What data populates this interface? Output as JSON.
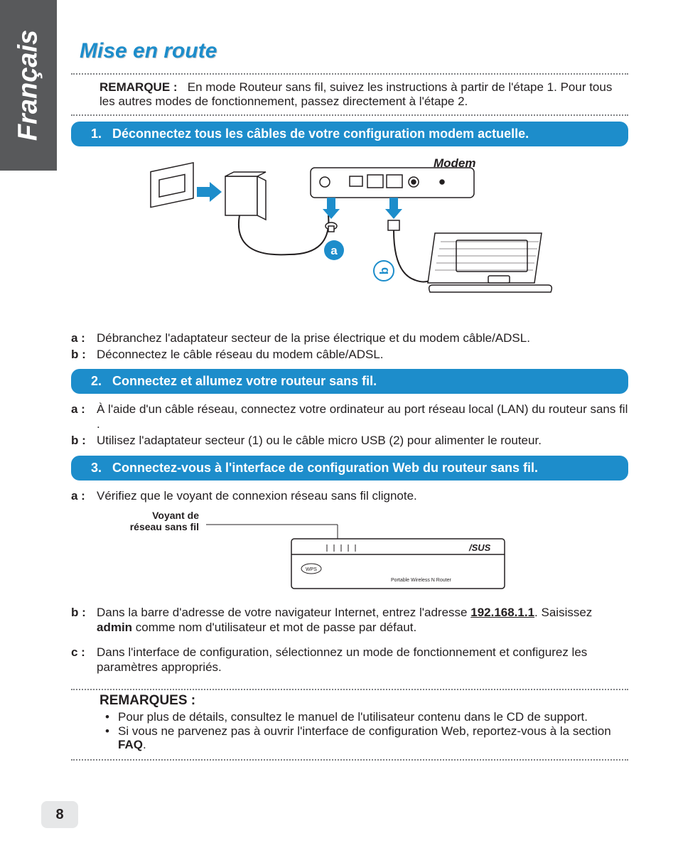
{
  "language_tab": "Français",
  "title": "Mise en route",
  "top_note": {
    "label": "REMARQUE :",
    "text": "En mode Routeur sans fil, suivez les instructions à partir de l'étape 1. Pour tous les autres modes de fonctionnement, passez directement à l'étape 2."
  },
  "step1": {
    "num": "1.",
    "text": "Déconnectez tous les câbles de votre configuration modem actuelle."
  },
  "diagram1": {
    "modem_label": "Modem",
    "badge_a": "a",
    "badge_b": "b"
  },
  "step1_items": [
    {
      "k": "a :",
      "v": "Débranchez l'adaptateur secteur de la prise électrique et du modem câble/ADSL."
    },
    {
      "k": "b :",
      "v": "Déconnectez le câble réseau du modem câble/ADSL."
    }
  ],
  "step2": {
    "num": "2.",
    "text": "Connectez et allumez votre routeur sans fil."
  },
  "step2_items": [
    {
      "k": "a :",
      "v": "À l'aide d'un câble réseau, connectez votre ordinateur au port réseau local (LAN) du routeur sans fil ."
    },
    {
      "k": "b :",
      "v": "Utilisez l'adaptateur secteur (1) ou le câble micro USB (2) pour alimenter le routeur."
    }
  ],
  "step3": {
    "num": "3.",
    "text": "Connectez-vous à l'interface de configuration Web du routeur sans fil."
  },
  "step3a": {
    "k": "a :",
    "v": "Vérifiez que le voyant de connexion réseau sans fil clignote."
  },
  "diagram2": {
    "label_l1": "Voyant de",
    "label_l2": "réseau sans fil",
    "router_text": "Portable Wireless N Router"
  },
  "step3b": {
    "k": "b :",
    "pre": "Dans la barre d'adresse de votre navigateur Internet, entrez l'adresse ",
    "ip": "192.168.1.1",
    "post1": ". Saisissez ",
    "admin": "admin",
    "post2": " comme nom d'utilisateur et mot de passe par défaut."
  },
  "step3c": {
    "k": "c :",
    "v": "Dans l'interface de configuration, sélectionnez un mode de fonctionnement et configurez les paramètres appropriés."
  },
  "remarks": {
    "label": "REMARQUES :",
    "items": [
      "Pour plus de détails, consultez le manuel de l'utilisateur contenu dans le CD de support.",
      "Si vous ne parvenez pas à ouvrir l'interface de configuration Web, reportez-vous à la section <b>FAQ</b>."
    ]
  },
  "page_number": "8",
  "colors": {
    "accent": "#1d8dcb",
    "side_tab": "#58595b",
    "page_num_bg": "#e6e7e8",
    "dotted": "#808285"
  }
}
